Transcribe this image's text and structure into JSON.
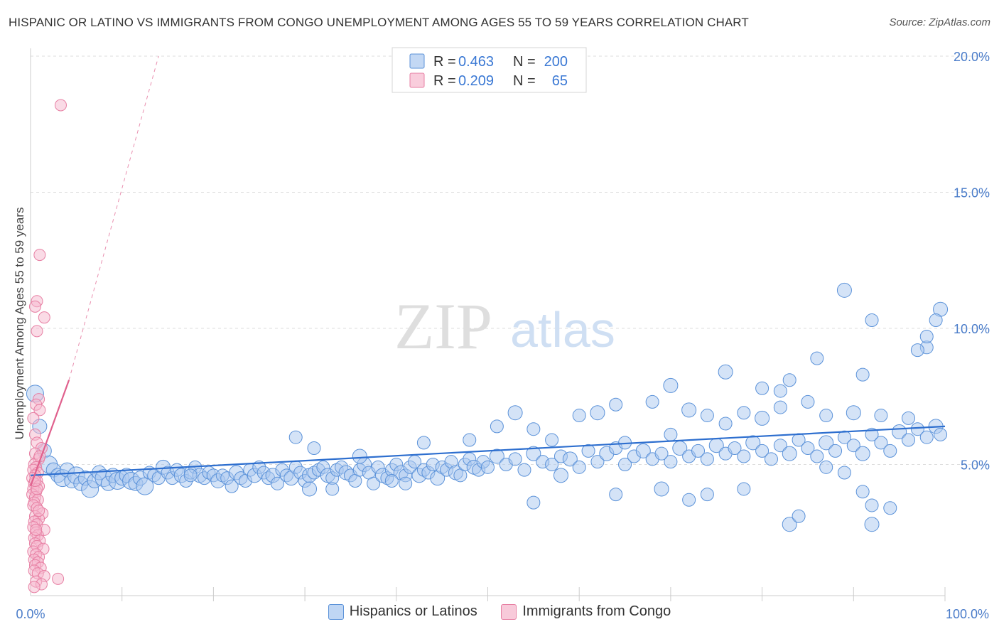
{
  "title": "HISPANIC OR LATINO VS IMMIGRANTS FROM CONGO UNEMPLOYMENT AMONG AGES 55 TO 59 YEARS CORRELATION CHART",
  "source": "Source: ZipAtlas.com",
  "watermark": {
    "zip": "ZIP",
    "atlas": "atlas"
  },
  "colors": {
    "blue_fill": "#a9c8f0",
    "blue_stroke": "#5b92d9",
    "blue_line": "#2e6fcf",
    "pink_fill": "#f6b8cd",
    "pink_stroke": "#e77fa3",
    "pink_line": "#e0608d",
    "tick_text": "#4a7cc9",
    "grid": "#dddddd"
  },
  "legend_box": {
    "rows": [
      {
        "r_label": "R = ",
        "r_value": "0.463",
        "n_label": "N = ",
        "n_value": "200"
      },
      {
        "r_label": "R = ",
        "r_value": "0.209",
        "n_label": "N = ",
        "n_value": "65"
      }
    ]
  },
  "chart_data": {
    "type": "scatter",
    "title": "HISPANIC OR LATINO VS IMMIGRANTS FROM CONGO UNEMPLOYMENT AMONG AGES 55 TO 59 YEARS CORRELATION CHART",
    "xlabel": "",
    "ylabel": "Unemployment Among Ages 55 to 59 years",
    "xlim": [
      0,
      100
    ],
    "ylim": [
      0,
      20.5
    ],
    "x_tick_labels": [
      "0.0%",
      "100.0%"
    ],
    "y_ticks": [
      5,
      10,
      15,
      20
    ],
    "y_tick_labels": [
      "5.0%",
      "10.0%",
      "15.0%",
      "20.0%"
    ],
    "grid": true,
    "legend_position": "top-center",
    "series": [
      {
        "name": "Hispanics or Latinos",
        "r": 0.463,
        "n": 200,
        "trend": {
          "x": [
            0,
            100
          ],
          "y": [
            4.6,
            6.4
          ]
        },
        "points": [
          [
            0.5,
            7.6
          ],
          [
            1.0,
            6.4
          ],
          [
            1.5,
            5.5
          ],
          [
            2.0,
            5.0
          ],
          [
            2.5,
            4.8
          ],
          [
            3.0,
            4.6
          ],
          [
            3.5,
            4.5
          ],
          [
            4.0,
            4.8
          ],
          [
            4.5,
            4.4
          ],
          [
            5.0,
            4.6
          ],
          [
            5.5,
            4.3
          ],
          [
            6.0,
            4.5
          ],
          [
            6.5,
            4.1
          ],
          [
            7.0,
            4.4
          ],
          [
            7.5,
            4.7
          ],
          [
            8.0,
            4.5
          ],
          [
            8.5,
            4.3
          ],
          [
            9.0,
            4.6
          ],
          [
            9.5,
            4.4
          ],
          [
            10.0,
            4.5
          ],
          [
            10.5,
            4.6
          ],
          [
            11.0,
            4.4
          ],
          [
            11.5,
            4.3
          ],
          [
            12.0,
            4.5
          ],
          [
            12.5,
            4.2
          ],
          [
            13.0,
            4.7
          ],
          [
            13.5,
            4.6
          ],
          [
            14.0,
            4.5
          ],
          [
            14.5,
            4.9
          ],
          [
            15.0,
            4.7
          ],
          [
            15.5,
            4.5
          ],
          [
            16.0,
            4.8
          ],
          [
            16.5,
            4.6
          ],
          [
            17.0,
            4.4
          ],
          [
            17.5,
            4.7
          ],
          [
            18.0,
            4.9
          ],
          [
            18.5,
            4.6
          ],
          [
            19.0,
            4.5
          ],
          [
            19.5,
            4.7
          ],
          [
            20.0,
            4.6
          ],
          [
            20.5,
            4.4
          ],
          [
            21.0,
            4.6
          ],
          [
            21.5,
            4.5
          ],
          [
            22.0,
            4.2
          ],
          [
            22.5,
            4.7
          ],
          [
            23.0,
            4.5
          ],
          [
            23.5,
            4.4
          ],
          [
            24.0,
            4.8
          ],
          [
            24.5,
            4.6
          ],
          [
            25.0,
            4.9
          ],
          [
            25.5,
            4.7
          ],
          [
            26.0,
            4.5
          ],
          [
            26.5,
            4.6
          ],
          [
            27.0,
            4.3
          ],
          [
            27.5,
            4.8
          ],
          [
            28.0,
            4.6
          ],
          [
            28.5,
            4.5
          ],
          [
            29.0,
            4.9
          ],
          [
            29.5,
            4.7
          ],
          [
            30.0,
            4.4
          ],
          [
            30.5,
            4.6
          ],
          [
            31.0,
            4.7
          ],
          [
            31.5,
            4.8
          ],
          [
            32.0,
            4.9
          ],
          [
            32.5,
            4.6
          ],
          [
            33.0,
            4.5
          ],
          [
            33.5,
            4.8
          ],
          [
            34.0,
            4.9
          ],
          [
            34.5,
            4.7
          ],
          [
            35.0,
            4.6
          ],
          [
            35.5,
            4.4
          ],
          [
            36.0,
            4.8
          ],
          [
            36.5,
            5.0
          ],
          [
            37.0,
            4.7
          ],
          [
            37.5,
            4.3
          ],
          [
            38.0,
            4.9
          ],
          [
            38.5,
            4.6
          ],
          [
            39.0,
            4.5
          ],
          [
            39.5,
            4.8
          ],
          [
            40.0,
            5.0
          ],
          [
            40.5,
            4.7
          ],
          [
            41.0,
            4.6
          ],
          [
            41.5,
            4.9
          ],
          [
            42.0,
            5.1
          ],
          [
            42.5,
            4.6
          ],
          [
            43.0,
            4.8
          ],
          [
            43.5,
            4.7
          ],
          [
            44.0,
            5.0
          ],
          [
            44.5,
            4.5
          ],
          [
            45.0,
            4.9
          ],
          [
            45.5,
            4.8
          ],
          [
            46.0,
            5.1
          ],
          [
            46.5,
            4.7
          ],
          [
            47.0,
            4.6
          ],
          [
            47.5,
            5.0
          ],
          [
            48.0,
            5.2
          ],
          [
            48.5,
            4.9
          ],
          [
            49.0,
            4.8
          ],
          [
            49.5,
            5.1
          ],
          [
            50.0,
            4.9
          ],
          [
            51.0,
            5.3
          ],
          [
            52.0,
            5.0
          ],
          [
            53.0,
            5.2
          ],
          [
            54.0,
            4.8
          ],
          [
            55.0,
            5.4
          ],
          [
            56.0,
            5.1
          ],
          [
            57.0,
            5.0
          ],
          [
            58.0,
            5.3
          ],
          [
            59.0,
            5.2
          ],
          [
            60.0,
            4.9
          ],
          [
            61.0,
            5.5
          ],
          [
            62.0,
            5.1
          ],
          [
            63.0,
            5.4
          ],
          [
            64.0,
            5.6
          ],
          [
            65.0,
            5.0
          ],
          [
            66.0,
            5.3
          ],
          [
            67.0,
            5.5
          ],
          [
            68.0,
            5.2
          ],
          [
            69.0,
            5.4
          ],
          [
            70.0,
            5.1
          ],
          [
            71.0,
            5.6
          ],
          [
            72.0,
            5.3
          ],
          [
            73.0,
            5.5
          ],
          [
            74.0,
            5.2
          ],
          [
            75.0,
            5.7
          ],
          [
            76.0,
            5.4
          ],
          [
            77.0,
            5.6
          ],
          [
            78.0,
            5.3
          ],
          [
            79.0,
            5.8
          ],
          [
            80.0,
            5.5
          ],
          [
            81.0,
            5.2
          ],
          [
            82.0,
            5.7
          ],
          [
            83.0,
            5.4
          ],
          [
            84.0,
            5.9
          ],
          [
            85.0,
            5.6
          ],
          [
            86.0,
            5.3
          ],
          [
            87.0,
            5.8
          ],
          [
            88.0,
            5.5
          ],
          [
            89.0,
            6.0
          ],
          [
            90.0,
            5.7
          ],
          [
            91.0,
            5.4
          ],
          [
            92.0,
            6.1
          ],
          [
            93.0,
            5.8
          ],
          [
            94.0,
            5.5
          ],
          [
            95.0,
            6.2
          ],
          [
            96.0,
            5.9
          ],
          [
            97.0,
            6.3
          ],
          [
            98.0,
            6.0
          ],
          [
            99.0,
            6.4
          ],
          [
            99.5,
            6.1
          ],
          [
            29.0,
            6.0
          ],
          [
            31.0,
            5.6
          ],
          [
            36.0,
            5.3
          ],
          [
            43.0,
            5.8
          ],
          [
            48.0,
            5.9
          ],
          [
            51.0,
            6.4
          ],
          [
            53.0,
            6.9
          ],
          [
            55.0,
            6.3
          ],
          [
            57.0,
            5.9
          ],
          [
            60.0,
            6.8
          ],
          [
            62.0,
            6.9
          ],
          [
            65.0,
            5.8
          ],
          [
            68.0,
            7.3
          ],
          [
            70.0,
            6.1
          ],
          [
            72.0,
            7.0
          ],
          [
            74.0,
            6.8
          ],
          [
            76.0,
            6.5
          ],
          [
            78.0,
            6.9
          ],
          [
            80.0,
            6.7
          ],
          [
            82.0,
            7.1
          ],
          [
            85.0,
            7.3
          ],
          [
            87.0,
            6.8
          ],
          [
            90.0,
            6.9
          ],
          [
            93.0,
            6.8
          ],
          [
            96.0,
            6.7
          ],
          [
            98.0,
            9.3
          ],
          [
            99.5,
            10.7
          ],
          [
            99.0,
            10.3
          ],
          [
            98.0,
            9.7
          ],
          [
            97.0,
            9.2
          ],
          [
            89.0,
            11.4
          ],
          [
            91.0,
            8.3
          ],
          [
            92.0,
            10.3
          ],
          [
            86.0,
            8.9
          ],
          [
            76.0,
            8.4
          ],
          [
            83.0,
            8.1
          ],
          [
            80.0,
            7.8
          ],
          [
            82.0,
            7.7
          ],
          [
            70.0,
            7.9
          ],
          [
            64.0,
            7.2
          ],
          [
            55.0,
            3.6
          ],
          [
            64.0,
            3.9
          ],
          [
            69.0,
            4.1
          ],
          [
            72.0,
            3.7
          ],
          [
            74.0,
            3.9
          ],
          [
            78.0,
            4.1
          ],
          [
            83.0,
            2.8
          ],
          [
            84.0,
            3.1
          ],
          [
            92.0,
            3.5
          ],
          [
            94.0,
            3.4
          ],
          [
            92.0,
            2.8
          ],
          [
            91.0,
            4.0
          ],
          [
            87.0,
            4.9
          ],
          [
            89.0,
            4.7
          ],
          [
            58.0,
            4.6
          ],
          [
            41.0,
            4.3
          ],
          [
            39.5,
            4.4
          ],
          [
            33.0,
            4.1
          ],
          [
            30.5,
            4.1
          ],
          [
            17.5,
            4.6
          ]
        ]
      },
      {
        "name": "Immigrants from Congo",
        "r": 0.209,
        "n": 65,
        "trend": {
          "x": [
            0,
            4.2
          ],
          "y": [
            4.2,
            8.1
          ]
        },
        "trend_extension": {
          "x": [
            4.2,
            14.0
          ],
          "y": [
            8.1,
            20.0
          ]
        },
        "points": [
          [
            3.3,
            18.2
          ],
          [
            1.0,
            12.7
          ],
          [
            0.7,
            11.0
          ],
          [
            1.5,
            10.4
          ],
          [
            0.7,
            9.9
          ],
          [
            0.5,
            10.8
          ],
          [
            0.9,
            7.4
          ],
          [
            0.6,
            7.2
          ],
          [
            1.0,
            7.0
          ],
          [
            0.3,
            6.7
          ],
          [
            0.5,
            6.1
          ],
          [
            0.7,
            5.8
          ],
          [
            1.2,
            5.6
          ],
          [
            0.5,
            5.4
          ],
          [
            0.9,
            5.2
          ],
          [
            0.4,
            5.0
          ],
          [
            0.6,
            4.9
          ],
          [
            0.3,
            4.8
          ],
          [
            0.8,
            4.7
          ],
          [
            0.5,
            4.6
          ],
          [
            0.2,
            4.5
          ],
          [
            0.7,
            4.4
          ],
          [
            0.4,
            4.3
          ],
          [
            0.9,
            4.2
          ],
          [
            0.3,
            4.1
          ],
          [
            0.6,
            4.0
          ],
          [
            0.2,
            3.9
          ],
          [
            0.5,
            3.8
          ],
          [
            0.8,
            3.7
          ],
          [
            0.4,
            3.6
          ],
          [
            0.3,
            3.5
          ],
          [
            0.7,
            3.4
          ],
          [
            1.3,
            3.2
          ],
          [
            0.5,
            3.1
          ],
          [
            0.9,
            3.0
          ],
          [
            0.4,
            2.9
          ],
          [
            0.7,
            2.8
          ],
          [
            0.3,
            2.7
          ],
          [
            1.5,
            2.6
          ],
          [
            0.6,
            2.5
          ],
          [
            0.8,
            2.4
          ],
          [
            0.4,
            2.3
          ],
          [
            1.0,
            2.2
          ],
          [
            0.5,
            2.1
          ],
          [
            0.7,
            2.0
          ],
          [
            1.4,
            1.9
          ],
          [
            0.3,
            1.8
          ],
          [
            0.6,
            1.7
          ],
          [
            0.9,
            1.6
          ],
          [
            0.4,
            1.5
          ],
          [
            0.8,
            1.4
          ],
          [
            0.5,
            1.3
          ],
          [
            1.1,
            1.2
          ],
          [
            0.4,
            1.1
          ],
          [
            0.8,
            1.0
          ],
          [
            1.5,
            0.9
          ],
          [
            3.0,
            0.8
          ],
          [
            0.6,
            0.7
          ],
          [
            1.2,
            0.6
          ],
          [
            0.4,
            0.5
          ],
          [
            0.7,
            4.1
          ],
          [
            1.0,
            5.3
          ],
          [
            0.6,
            2.6
          ],
          [
            0.9,
            3.3
          ],
          [
            0.5,
            4.4
          ]
        ]
      }
    ]
  },
  "bottom_legend": [
    {
      "label": "Hispanics or Latinos"
    },
    {
      "label": "Immigrants from Congo"
    }
  ]
}
